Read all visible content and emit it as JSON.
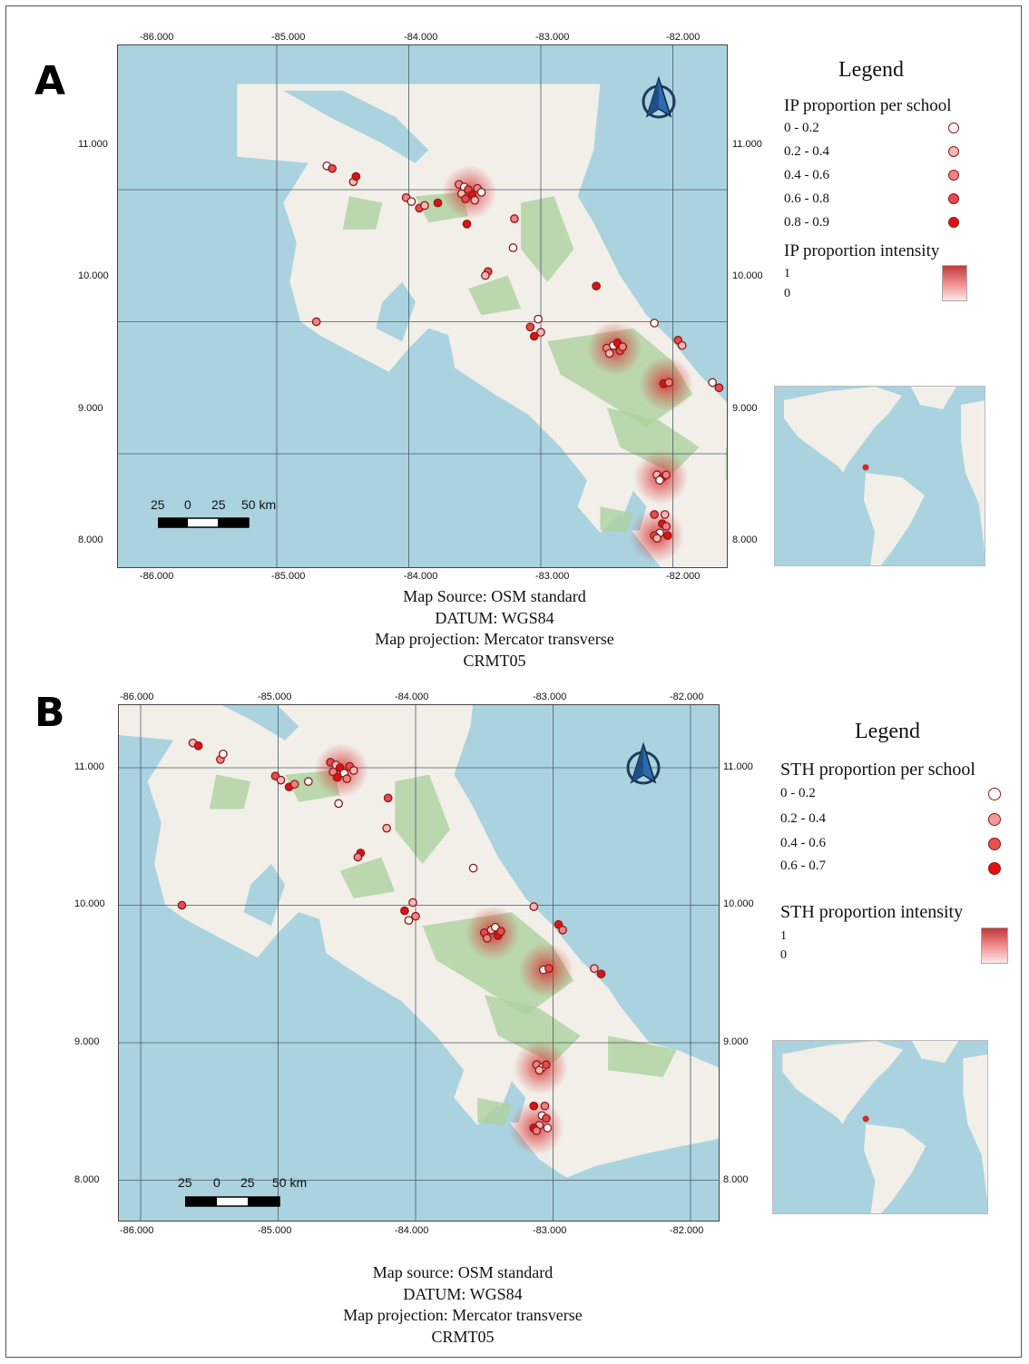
{
  "panels": [
    {
      "letter": "A",
      "top_ticks": [
        "-86.000",
        "-85.000",
        "-84.000",
        "-83.000",
        "-82.000"
      ],
      "bottom_ticks": [
        "-86.000",
        "-85.000",
        "-84.000",
        "-83.000",
        "-82.000"
      ],
      "left_ticks": [
        "11.000",
        "10.000",
        "9.000",
        "8.000"
      ],
      "right_ticks": [
        "11.000",
        "10.000",
        "9.000",
        "8.000"
      ],
      "scale_labels": [
        "25",
        "0",
        "25",
        "50 km"
      ],
      "legend": {
        "title": "Legend",
        "points_title": "IP proportion per school",
        "classes": [
          {
            "label": "0 - 0.2",
            "color": "#ffffff"
          },
          {
            "label": "0.2 - 0.4",
            "color": "#f6b6b6"
          },
          {
            "label": "0.4 - 0.6",
            "color": "#ef8383"
          },
          {
            "label": "0.6 - 0.8",
            "color": "#e84b4b"
          },
          {
            "label": "0.8 - 0.9",
            "color": "#e01111"
          }
        ],
        "intensity_title": "IP proportion intensity",
        "intensity_high": "1",
        "intensity_low": "0"
      },
      "caption": [
        "Map Source: OSM standard",
        "DATUM: WGS84",
        "Map projection: Mercator transverse",
        "CRMT05"
      ]
    },
    {
      "letter": "B",
      "top_ticks": [
        "-86.000",
        "-85.000",
        "-84.000",
        "-83.000",
        "-82.000"
      ],
      "bottom_ticks": [
        "-86.000",
        "-85.000",
        "-84.000",
        "-83.000",
        "-82.000"
      ],
      "left_ticks": [
        "11.000",
        "10.000",
        "9.000",
        "8.000"
      ],
      "right_ticks": [
        "11.000",
        "10.000",
        "9.000",
        "8.000"
      ],
      "scale_labels": [
        "25",
        "0",
        "25",
        "50 km"
      ],
      "legend": {
        "title": "Legend",
        "points_title": "STH proportion per school",
        "classes": [
          {
            "label": "0 - 0.2",
            "color": "#ffffff"
          },
          {
            "label": "0.2 - 0.4",
            "color": "#f39a9a"
          },
          {
            "label": "0.4 - 0.6",
            "color": "#e85050"
          },
          {
            "label": "0.6 - 0.7",
            "color": "#e01111"
          }
        ],
        "intensity_title": "STH proportion intensity",
        "intensity_high": "1",
        "intensity_low": "0"
      },
      "caption": [
        "Map source: OSM standard",
        "DATUM: WGS84",
        "Map projection: Mercator transverse",
        "CRMT05"
      ]
    }
  ],
  "colors": {
    "ocean": "#aad3df",
    "land": "#f2efe9",
    "forest": "#add19e",
    "point_stroke": "#8b1a1a",
    "heat": "#d62828"
  },
  "schools": [
    [
      -85.62,
      11.18
    ],
    [
      -85.58,
      11.16
    ],
    [
      -85.42,
      11.06
    ],
    [
      -85.4,
      11.1
    ],
    [
      -85.02,
      10.94
    ],
    [
      -84.98,
      10.91
    ],
    [
      -84.92,
      10.86
    ],
    [
      -84.88,
      10.88
    ],
    [
      -84.78,
      10.9
    ],
    [
      -84.62,
      11.04
    ],
    [
      -84.58,
      11.02
    ],
    [
      -84.55,
      11.0
    ],
    [
      -84.6,
      10.97
    ],
    [
      -84.52,
      10.96
    ],
    [
      -84.48,
      11.01
    ],
    [
      -84.45,
      10.98
    ],
    [
      -84.57,
      10.93
    ],
    [
      -84.5,
      10.92
    ],
    [
      -84.56,
      10.74
    ],
    [
      -84.2,
      10.78
    ],
    [
      -84.21,
      10.56
    ],
    [
      -84.4,
      10.38
    ],
    [
      -84.42,
      10.35
    ],
    [
      -83.58,
      10.27
    ],
    [
      -85.7,
      10.0
    ],
    [
      -84.02,
      10.02
    ],
    [
      -84.08,
      9.96
    ],
    [
      -84.0,
      9.92
    ],
    [
      -84.05,
      9.89
    ],
    [
      -83.5,
      9.8
    ],
    [
      -83.45,
      9.82
    ],
    [
      -83.4,
      9.78
    ],
    [
      -83.48,
      9.76
    ],
    [
      -83.42,
      9.84
    ],
    [
      -83.38,
      9.81
    ],
    [
      -83.14,
      9.99
    ],
    [
      -82.96,
      9.86
    ],
    [
      -82.93,
      9.82
    ],
    [
      -83.07,
      9.53
    ],
    [
      -83.03,
      9.54
    ],
    [
      -82.7,
      9.54
    ],
    [
      -82.65,
      9.5
    ],
    [
      -83.12,
      8.84
    ],
    [
      -83.08,
      8.82
    ],
    [
      -83.05,
      8.84
    ],
    [
      -83.1,
      8.8
    ],
    [
      -83.14,
      8.54
    ],
    [
      -83.06,
      8.54
    ],
    [
      -83.08,
      8.47
    ],
    [
      -83.05,
      8.45
    ],
    [
      -83.1,
      8.4
    ],
    [
      -83.14,
      8.38
    ],
    [
      -83.12,
      8.36
    ],
    [
      -83.04,
      8.38
    ]
  ],
  "hotspots": [
    [
      -84.54,
      10.98
    ],
    [
      -83.44,
      9.8
    ],
    [
      -83.09,
      8.82
    ],
    [
      -83.12,
      8.38
    ],
    [
      -83.05,
      9.53
    ]
  ]
}
